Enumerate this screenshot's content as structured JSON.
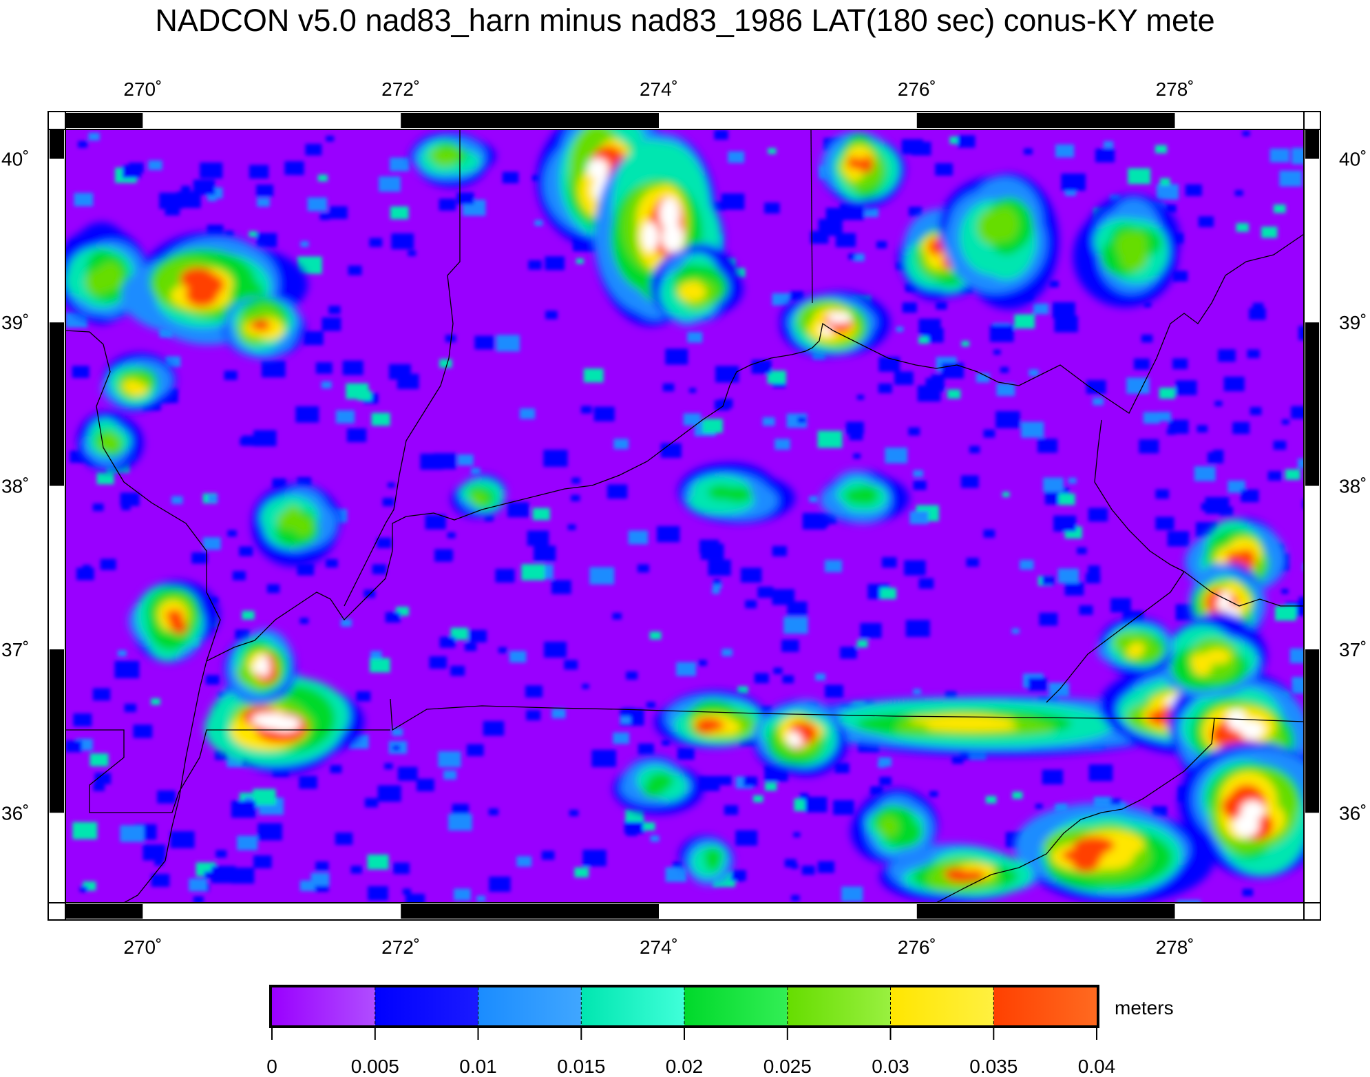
{
  "title": "NADCON v5.0 nad83_harn minus nad83_1986 LAT(180 sec) conus-KY mete",
  "map": {
    "lon_range": [
      269.4,
      279.0
    ],
    "lat_range": [
      35.45,
      40.18
    ],
    "lon_ticks": [
      {
        "value": 270,
        "label": "270˚"
      },
      {
        "value": 272,
        "label": "272˚"
      },
      {
        "value": 274,
        "label": "274˚"
      },
      {
        "value": 276,
        "label": "276˚"
      },
      {
        "value": 278,
        "label": "278˚"
      }
    ],
    "lat_ticks": [
      {
        "value": 40,
        "label": "40˚"
      },
      {
        "value": 39,
        "label": "39˚"
      },
      {
        "value": 38,
        "label": "38˚"
      },
      {
        "value": 37,
        "label": "37˚"
      },
      {
        "value": 36,
        "label": "36˚"
      }
    ],
    "background_color": "#9900ff",
    "boundary_color": "#000000"
  },
  "colorbar": {
    "unit": "meters",
    "ticks": [
      "0",
      "0.005",
      "0.01",
      "0.015",
      "0.02",
      "0.025",
      "0.03",
      "0.035",
      "0.04"
    ],
    "bins": [
      {
        "from": "#9a00ff",
        "to": "#b04dff"
      },
      {
        "from": "#0000ff",
        "to": "#1a1aff"
      },
      {
        "from": "#1a8cff",
        "to": "#40a6ff"
      },
      {
        "from": "#00e6b0",
        "to": "#40ffd9"
      },
      {
        "from": "#00d92b",
        "to": "#33ee55"
      },
      {
        "from": "#66dd00",
        "to": "#99f040"
      },
      {
        "from": "#ffe600",
        "to": "#fff040"
      },
      {
        "from": "#ff4000",
        "to": "#ff6a20"
      }
    ]
  }
}
